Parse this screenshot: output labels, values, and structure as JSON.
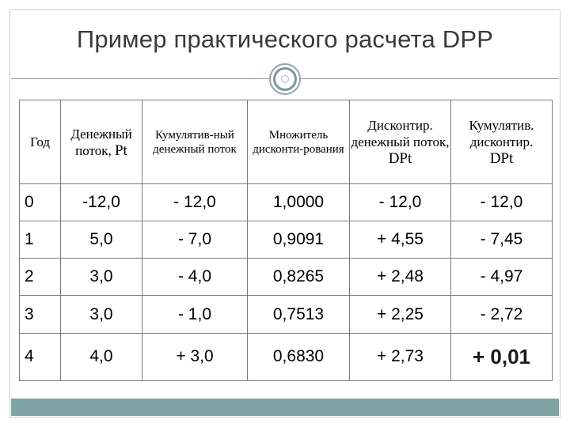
{
  "title": "Пример практического расчета DPP",
  "table": {
    "headers": {
      "year": "Год",
      "cash_flow": "Денежный поток,",
      "cash_flow_symbol": "Pt",
      "cumulative": "Кумулятив-ный денежный поток",
      "factor": "Множитель дисконти-рования",
      "disc_flow": "Дисконтир. денежный поток,",
      "disc_flow_symbol": "DPt",
      "cum_disc": "Кумулятив. дисконтир.",
      "cum_disc_symbol": "DPt"
    },
    "rows": [
      {
        "year": "0",
        "cash": "-12,0",
        "cum": "- 12,0",
        "factor": "1,0000",
        "disc": "- 12,0",
        "cumdisc": "- 12,0"
      },
      {
        "year": "1",
        "cash": "5,0",
        "cum": "- 7,0",
        "factor": "0,9091",
        "disc": "+ 4,55",
        "cumdisc": "- 7,45"
      },
      {
        "year": "2",
        "cash": "3,0",
        "cum": "- 4,0",
        "factor": "0,8265",
        "disc": "+ 2,48",
        "cumdisc": "- 4,97"
      },
      {
        "year": "3",
        "cash": "3,0",
        "cum": "- 1,0",
        "factor": "0,7513",
        "disc": "+ 2,25",
        "cumdisc": "- 2,72"
      },
      {
        "year": "4",
        "cash": "4,0",
        "cum": "+ 3,0",
        "factor": "0,6830",
        "disc": "+ 2,73",
        "cumdisc": "+ 0,01"
      }
    ]
  }
}
